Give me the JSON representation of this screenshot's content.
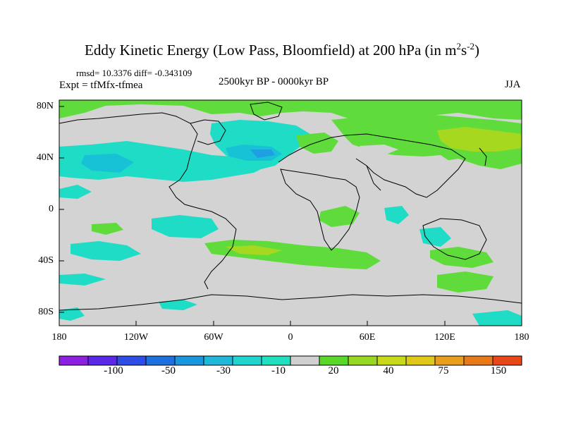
{
  "title": {
    "main": "Eddy Kinetic Energy (Low Pass, Bloomfield) at 200 hPa (in m",
    "exp1": "2",
    "mid": "s",
    "exp2": "-2",
    "end": ")"
  },
  "stats": "rmsd= 10.3376 diff= -0.343109",
  "expt": "Expt = tfMfx-tfmea",
  "period": "2500kyr BP - 0000kyr BP",
  "season": "JJA",
  "lat_labels": [
    "80N",
    "40N",
    "0",
    "40S",
    "80S"
  ],
  "lon_labels": [
    "180",
    "120W",
    "60W",
    "0",
    "60E",
    "120E",
    "180"
  ],
  "colorbar": {
    "labels": [
      "-100",
      "-50",
      "-30",
      "-10",
      "20",
      "40",
      "75",
      "150"
    ],
    "colors": [
      "#8c1fe0",
      "#5a28e6",
      "#2e4de6",
      "#1e70e0",
      "#1a96e0",
      "#1fb8d8",
      "#21d4d0",
      "#20e0c0",
      "#d0d0d0",
      "#5ad82a",
      "#98d820",
      "#c8d81a",
      "#e0c81a",
      "#e8a01a",
      "#e87818",
      "#e84818"
    ]
  },
  "colors": {
    "land_gray": "#d3d3d3",
    "green": "#5fdc3c",
    "yellowgreen": "#a6d81f",
    "cyan": "#1fdcc6",
    "teal": "#18c2d6",
    "blue": "#1e9fe0"
  }
}
